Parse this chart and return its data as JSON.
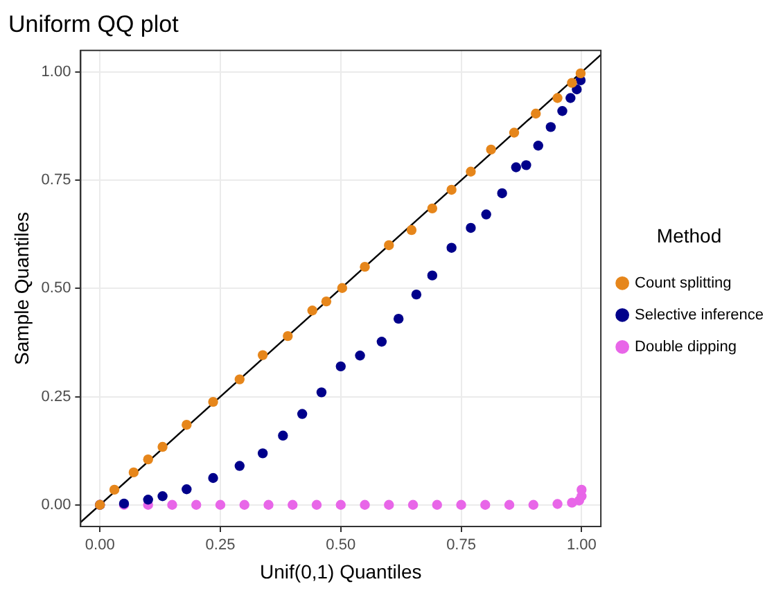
{
  "chart_data": {
    "type": "scatter",
    "title": "Uniform QQ plot",
    "xlabel": "Unif(0,1) Quantiles",
    "ylabel": "Sample Quantiles",
    "legend_title": "Method",
    "legend": "right",
    "grid": true,
    "marker": "circle",
    "xlim": [
      -0.04,
      1.04
    ],
    "ylim": [
      -0.05,
      1.05
    ],
    "xticks": [
      {
        "value": 0,
        "label": "0.00"
      },
      {
        "value": 0.25,
        "label": "0.25"
      },
      {
        "value": 0.5,
        "label": "0.50"
      },
      {
        "value": 0.75,
        "label": "0.75"
      },
      {
        "value": 1,
        "label": "1.00"
      }
    ],
    "yticks": [
      {
        "value": 0,
        "label": "0.00"
      },
      {
        "value": 0.25,
        "label": "0.25"
      },
      {
        "value": 0.5,
        "label": "0.50"
      },
      {
        "value": 0.75,
        "label": "0.75"
      },
      {
        "value": 1,
        "label": "1.00"
      }
    ],
    "series": [
      {
        "name": "Count splitting",
        "color": "#e6861b",
        "x": [
          0,
          0.03,
          0.07,
          0.1,
          0.13,
          0.18,
          0.235,
          0.29,
          0.338,
          0.39,
          0.441,
          0.47,
          0.503,
          0.55,
          0.6,
          0.647,
          0.69,
          0.73,
          0.77,
          0.812,
          0.86,
          0.905,
          0.95,
          0.98,
          0.998
        ],
        "values": [
          0,
          0.035,
          0.075,
          0.105,
          0.134,
          0.185,
          0.238,
          0.29,
          0.346,
          0.39,
          0.449,
          0.47,
          0.501,
          0.55,
          0.6,
          0.635,
          0.685,
          0.728,
          0.77,
          0.821,
          0.86,
          0.904,
          0.94,
          0.975,
          0.997
        ]
      },
      {
        "name": "Selective inference",
        "color": "#00008b",
        "x": [
          0,
          0.05,
          0.1,
          0.13,
          0.18,
          0.235,
          0.29,
          0.338,
          0.38,
          0.42,
          0.46,
          0.5,
          0.54,
          0.585,
          0.62,
          0.657,
          0.69,
          0.73,
          0.77,
          0.802,
          0.835,
          0.864,
          0.885,
          0.91,
          0.936,
          0.96,
          0.977,
          0.99,
          0.998
        ],
        "values": [
          0,
          0.003,
          0.012,
          0.02,
          0.036,
          0.062,
          0.09,
          0.119,
          0.16,
          0.21,
          0.26,
          0.32,
          0.345,
          0.377,
          0.43,
          0.486,
          0.53,
          0.594,
          0.64,
          0.671,
          0.72,
          0.78,
          0.785,
          0.83,
          0.873,
          0.91,
          0.94,
          0.96,
          0.981
        ]
      },
      {
        "name": "Double dipping",
        "color": "#e866e8",
        "x": [
          0,
          0.05,
          0.1,
          0.15,
          0.2,
          0.25,
          0.3,
          0.35,
          0.4,
          0.45,
          0.5,
          0.55,
          0.6,
          0.65,
          0.7,
          0.75,
          0.8,
          0.85,
          0.9,
          0.95,
          0.98,
          0.995,
          1,
          1
        ],
        "values": [
          0,
          0,
          0,
          0,
          0,
          0,
          0,
          0,
          0,
          0,
          0,
          0,
          0,
          0,
          0,
          0,
          0,
          0,
          0,
          0.002,
          0.005,
          0.01,
          0.02,
          0.035
        ]
      },
      {
        "type": "line",
        "marker": "none",
        "color": "#000000",
        "x": [
          -0.04,
          1.04
        ],
        "values": [
          -0.04,
          1.04
        ]
      }
    ]
  }
}
